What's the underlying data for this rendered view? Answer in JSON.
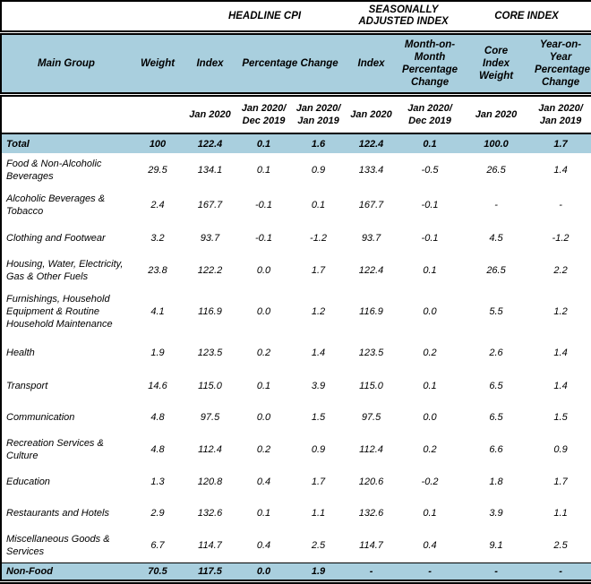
{
  "chart_data": {
    "type": "table",
    "group_headers": [
      "",
      "HEADLINE CPI",
      "SEASONALLY ADJUSTED INDEX",
      "CORE INDEX"
    ],
    "columns": [
      "Main Group",
      "Weight",
      "Index",
      "Percentage Change",
      "Index",
      "Month-on-Month Percentage Change",
      "Core Index Weight",
      "Year-on-Year Percentage Change"
    ],
    "period_labels": [
      "Jan 2020",
      "Jan 2020/ Dec 2019",
      "Jan 2020/ Jan 2019",
      "Jan 2020",
      "Jan 2020/ Dec 2019",
      "Jan 2020",
      "Jan 2020/ Jan 2019"
    ],
    "rows": [
      {
        "group": "Total",
        "highlight": true,
        "values": [
          "100",
          "122.4",
          "0.1",
          "1.6",
          "122.4",
          "0.1",
          "100.0",
          "1.7"
        ]
      },
      {
        "group": "Food & Non-Alcoholic Beverages",
        "highlight": false,
        "values": [
          "29.5",
          "134.1",
          "0.1",
          "0.9",
          "133.4",
          "-0.5",
          "26.5",
          "1.4"
        ]
      },
      {
        "group": "Alcoholic Beverages & Tobacco",
        "highlight": false,
        "values": [
          "2.4",
          "167.7",
          "-0.1",
          "0.1",
          "167.7",
          "-0.1",
          "-",
          "-"
        ]
      },
      {
        "group": "Clothing and Footwear",
        "highlight": false,
        "values": [
          "3.2",
          "93.7",
          "-0.1",
          "-1.2",
          "93.7",
          "-0.1",
          "4.5",
          "-1.2"
        ]
      },
      {
        "group": "Housing, Water, Electricity, Gas & Other Fuels",
        "highlight": false,
        "values": [
          "23.8",
          "122.2",
          "0.0",
          "1.7",
          "122.4",
          "0.1",
          "26.5",
          "2.2"
        ]
      },
      {
        "group": "Furnishings, Household Equipment  & Routine Household Maintenance",
        "highlight": false,
        "values": [
          "4.1",
          "116.9",
          "0.0",
          "1.2",
          "116.9",
          "0.0",
          "5.5",
          "1.2"
        ]
      },
      {
        "group": "Health",
        "highlight": false,
        "values": [
          "1.9",
          "123.5",
          "0.2",
          "1.4",
          "123.5",
          "0.2",
          "2.6",
          "1.4"
        ]
      },
      {
        "group": "Transport",
        "highlight": false,
        "values": [
          "14.6",
          "115.0",
          "0.1",
          "3.9",
          "115.0",
          "0.1",
          "6.5",
          "1.4"
        ]
      },
      {
        "group": "Communication",
        "highlight": false,
        "values": [
          "4.8",
          "97.5",
          "0.0",
          "1.5",
          "97.5",
          "0.0",
          "6.5",
          "1.5"
        ]
      },
      {
        "group": "Recreation Services & Culture",
        "highlight": false,
        "values": [
          "4.8",
          "112.4",
          "0.2",
          "0.9",
          "112.4",
          "0.2",
          "6.6",
          "0.9"
        ]
      },
      {
        "group": "Education",
        "highlight": false,
        "values": [
          "1.3",
          "120.8",
          "0.4",
          "1.7",
          "120.6",
          "-0.2",
          "1.8",
          "1.7"
        ]
      },
      {
        "group": "Restaurants and Hotels",
        "highlight": false,
        "values": [
          "2.9",
          "132.6",
          "0.1",
          "1.1",
          "132.6",
          "0.1",
          "3.9",
          "1.1"
        ]
      },
      {
        "group": "Miscellaneous Goods & Services",
        "highlight": false,
        "values": [
          "6.7",
          "114.7",
          "0.4",
          "2.5",
          "114.7",
          "0.4",
          "9.1",
          "2.5"
        ]
      },
      {
        "group": "Non-Food",
        "highlight": true,
        "values": [
          "70.5",
          "117.5",
          "0.0",
          "1.9",
          "-",
          "-",
          "-",
          "-"
        ]
      }
    ]
  },
  "colors": {
    "header_fill": "#A9CFDE",
    "border": "#000000",
    "text": "#000000",
    "background": "#FFFFFF"
  }
}
